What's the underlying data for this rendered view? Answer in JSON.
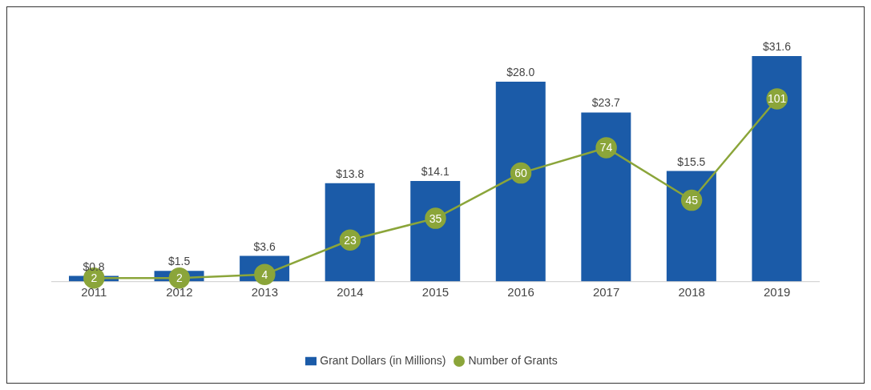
{
  "chart_data": {
    "type": "bar",
    "categories": [
      "2011",
      "2012",
      "2013",
      "2014",
      "2015",
      "2016",
      "2017",
      "2018",
      "2019"
    ],
    "series": [
      {
        "name": "Grant Dollars (in Millions)",
        "color": "#1b5ba8",
        "values": [
          0.8,
          1.5,
          3.6,
          13.8,
          14.1,
          28.0,
          23.7,
          15.5,
          31.6
        ],
        "value_labels": [
          "$0.8",
          "$1.5",
          "$3.6",
          "$13.8",
          "$14.1",
          "$28.0",
          "$23.7",
          "$15.5",
          "$31.6"
        ]
      },
      {
        "name": "Number of Grants",
        "type": "line",
        "axis": "y2",
        "color": "#8ba53a",
        "values": [
          2,
          2,
          4,
          23,
          35,
          60,
          74,
          45,
          101
        ],
        "value_labels": [
          "2",
          "2",
          "4",
          "23",
          "35",
          "60",
          "74",
          "45",
          "101"
        ]
      }
    ],
    "marker": "circle",
    "legend": "bottom",
    "grid": false
  }
}
